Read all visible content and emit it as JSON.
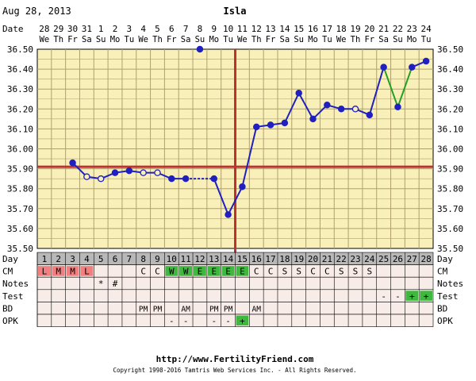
{
  "header": {
    "date": "Aug 28, 2013",
    "name": "Isla"
  },
  "chart_data": {
    "type": "line",
    "row_labels": {
      "date": "Date",
      "day": "Day",
      "cm": "CM",
      "notes": "Notes",
      "test": "Test",
      "bd": "BD",
      "opk": "OPK"
    },
    "dates": [
      "28",
      "29",
      "30",
      "31",
      "1",
      "2",
      "3",
      "4",
      "5",
      "6",
      "7",
      "8",
      "9",
      "10",
      "11",
      "12",
      "13",
      "14",
      "15",
      "16",
      "17",
      "18",
      "19",
      "20",
      "21",
      "22",
      "23",
      "24"
    ],
    "weekdays": [
      "We",
      "Th",
      "Fr",
      "Sa",
      "Su",
      "Mo",
      "Tu",
      "We",
      "Th",
      "Fr",
      "Sa",
      "Su",
      "Mo",
      "Tu",
      "We",
      "Th",
      "Fr",
      "Sa",
      "Su",
      "Mo",
      "Tu",
      "We",
      "Th",
      "Fr",
      "Sa",
      "Su",
      "Mo",
      "Tu"
    ],
    "days": [
      "1",
      "2",
      "3",
      "4",
      "5",
      "6",
      "7",
      "8",
      "9",
      "10",
      "11",
      "12",
      "13",
      "14",
      "15",
      "16",
      "17",
      "18",
      "19",
      "20",
      "21",
      "22",
      "23",
      "24",
      "25",
      "26",
      "27",
      "28"
    ],
    "ylim": [
      35.5,
      36.5
    ],
    "ytick_step": 0.1,
    "yticks": [
      "36.50",
      "36.40",
      "36.30",
      "36.20",
      "36.10",
      "36.00",
      "35.90",
      "35.80",
      "35.70",
      "35.60",
      "35.50"
    ],
    "coverline": 35.91,
    "ovulation_day": 15,
    "temps": [
      null,
      null,
      35.93,
      35.86,
      35.85,
      35.88,
      35.89,
      35.88,
      35.88,
      35.85,
      35.85,
      36.5,
      35.85,
      35.67,
      35.81,
      36.11,
      36.12,
      36.13,
      36.28,
      36.15,
      36.22,
      36.2,
      36.2,
      36.17,
      36.41,
      36.21,
      36.41,
      36.44
    ],
    "markers": [
      "",
      "",
      "filled",
      "open",
      "open",
      "filled",
      "filled",
      "open",
      "open",
      "filled",
      "filled",
      "filled",
      "filled",
      "filled",
      "filled",
      "filled",
      "filled",
      "filled",
      "filled",
      "filled",
      "filled",
      "filled",
      "open",
      "filled",
      "filled",
      "filled",
      "filled",
      "filled"
    ],
    "segments": [
      {
        "from": 3,
        "to": 4,
        "style": "solid",
        "color": "#2020c0"
      },
      {
        "from": 4,
        "to": 5,
        "style": "solid",
        "color": "#2020c0"
      },
      {
        "from": 5,
        "to": 6,
        "style": "solid",
        "color": "#2020c0"
      },
      {
        "from": 6,
        "to": 7,
        "style": "solid",
        "color": "#2020c0"
      },
      {
        "from": 7,
        "to": 8,
        "style": "solid",
        "color": "#2020c0"
      },
      {
        "from": 8,
        "to": 9,
        "style": "solid",
        "color": "#2020c0"
      },
      {
        "from": 9,
        "to": 10,
        "style": "solid",
        "color": "#2020c0"
      },
      {
        "from": 10,
        "to": 11,
        "style": "solid",
        "color": "#2020c0"
      },
      {
        "from": 11,
        "to": 13,
        "style": "dotted",
        "color": "#2020c0"
      },
      {
        "from": 13,
        "to": 14,
        "style": "solid",
        "color": "#2020c0"
      },
      {
        "from": 14,
        "to": 15,
        "style": "solid",
        "color": "#2020c0"
      },
      {
        "from": 15,
        "to": 16,
        "style": "solid",
        "color": "#2020c0"
      },
      {
        "from": 16,
        "to": 17,
        "style": "solid",
        "color": "#2020c0"
      },
      {
        "from": 17,
        "to": 18,
        "style": "solid",
        "color": "#2020c0"
      },
      {
        "from": 18,
        "to": 19,
        "style": "solid",
        "color": "#2020c0"
      },
      {
        "from": 19,
        "to": 20,
        "style": "solid",
        "color": "#2020c0"
      },
      {
        "from": 20,
        "to": 21,
        "style": "solid",
        "color": "#2020c0"
      },
      {
        "from": 21,
        "to": 22,
        "style": "solid",
        "color": "#2020c0"
      },
      {
        "from": 22,
        "to": 23,
        "style": "solid",
        "color": "#2020c0"
      },
      {
        "from": 23,
        "to": 24,
        "style": "solid",
        "color": "#2020c0"
      },
      {
        "from": 24,
        "to": 25,
        "style": "solid",
        "color": "#2020c0"
      },
      {
        "from": 25,
        "to": 26,
        "style": "solid",
        "color": "#22a022"
      },
      {
        "from": 26,
        "to": 27,
        "style": "solid",
        "color": "#22a022"
      },
      {
        "from": 27,
        "to": 28,
        "style": "solid",
        "color": "#2020c0"
      }
    ],
    "cm": [
      "L",
      "M",
      "M",
      "L",
      "",
      "",
      "",
      "C",
      "C",
      "W",
      "W",
      "E",
      "E",
      "E",
      "E",
      "C",
      "C",
      "S",
      "S",
      "C",
      "C",
      "S",
      "S",
      "S",
      "",
      "",
      "",
      ""
    ],
    "notes": [
      "",
      "",
      "",
      "",
      "*",
      "#",
      "",
      "",
      "",
      "",
      "",
      "",
      "",
      "",
      "",
      "",
      "",
      "",
      "",
      "",
      "",
      "",
      "",
      "",
      "",
      "",
      "",
      ""
    ],
    "test": [
      "",
      "",
      "",
      "",
      "",
      "",
      "",
      "",
      "",
      "",
      "",
      "",
      "",
      "",
      "",
      "",
      "",
      "",
      "",
      "",
      "",
      "",
      "",
      "",
      "-",
      "-",
      "+",
      "+"
    ],
    "bd": [
      "",
      "",
      "",
      "",
      "",
      "",
      "",
      "PM",
      "PM",
      "",
      "AM",
      "",
      "PM",
      "PM",
      "",
      "AM",
      "",
      "",
      "",
      "",
      "",
      "",
      "",
      "",
      "",
      "",
      "",
      ""
    ],
    "opk": [
      "",
      "",
      "",
      "",
      "",
      "",
      "",
      "",
      "",
      "-",
      "-",
      "",
      "-",
      "-",
      "+",
      "",
      "",
      "",
      "",
      "",
      "",
      "",
      "",
      "",
      "",
      "",
      "",
      ""
    ],
    "grid": true
  },
  "colors": {
    "chart_bg": "#f8f0b8",
    "grid": "#b0a070",
    "line": "#2020c0",
    "green_line": "#22a022",
    "coverline": "#c03030",
    "ovulation": "#c03030",
    "header_blue": "#202090",
    "day_row_bg": "#b8b8b8",
    "bottom_bg": "#f8ece8",
    "cm_red": "#f08080",
    "cm_green": "#40b840",
    "cm_gray": "#d8d8d8",
    "test_green": "#40b840"
  },
  "footer": {
    "url": "http://www.FertilityFriend.com",
    "copyright": "Copyright 1998-2016 Tamtris Web Services Inc. - All Rights Reserved."
  }
}
